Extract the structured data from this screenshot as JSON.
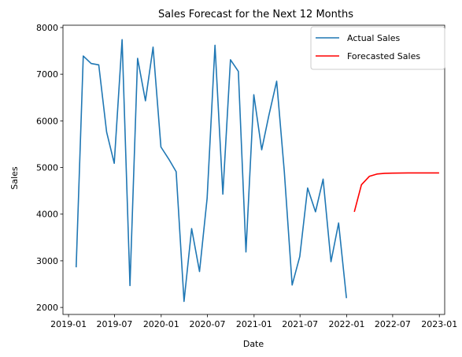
{
  "chart_data": {
    "type": "line",
    "title": "Sales Forecast for the Next 12 Months",
    "xlabel": "Date",
    "ylabel": "Sales",
    "x_type": "date",
    "xlim": [
      "2018-12-10",
      "2023-01-22"
    ],
    "ylim": [
      1850,
      8050
    ],
    "x_ticks": [
      "2019-01",
      "2019-07",
      "2020-01",
      "2020-07",
      "2021-01",
      "2021-07",
      "2022-01",
      "2022-07",
      "2023-01"
    ],
    "y_ticks": [
      2000,
      3000,
      4000,
      5000,
      6000,
      7000,
      8000
    ],
    "grid": false,
    "legend_position": "top-right",
    "series": [
      {
        "name": "Actual Sales",
        "color": "#1f77b4",
        "x": [
          "2019-01-31",
          "2019-02-28",
          "2019-03-31",
          "2019-04-30",
          "2019-05-31",
          "2019-06-30",
          "2019-07-31",
          "2019-08-31",
          "2019-09-30",
          "2019-10-31",
          "2019-11-30",
          "2019-12-31",
          "2020-01-31",
          "2020-02-29",
          "2020-03-31",
          "2020-04-30",
          "2020-05-31",
          "2020-06-30",
          "2020-07-31",
          "2020-08-31",
          "2020-09-30",
          "2020-10-31",
          "2020-11-30",
          "2020-12-31",
          "2021-01-31",
          "2021-02-28",
          "2021-03-31",
          "2021-04-30",
          "2021-05-31",
          "2021-06-30",
          "2021-07-31",
          "2021-08-31",
          "2021-09-30",
          "2021-10-31",
          "2021-11-30",
          "2021-12-31"
        ],
        "values": [
          2860,
          7390,
          7230,
          7200,
          5760,
          5090,
          7740,
          2470,
          7340,
          6430,
          7580,
          5440,
          5180,
          4910,
          2130,
          3690,
          2770,
          4340,
          7620,
          4430,
          7310,
          7060,
          3190,
          6560,
          5380,
          6110,
          6850,
          4920,
          2480,
          3090,
          4560,
          4050,
          4750,
          2980,
          3810,
          2200
        ]
      },
      {
        "name": "Forecasted Sales",
        "color": "#ff0000",
        "x": [
          "2022-01-31",
          "2022-02-28",
          "2022-03-31",
          "2022-04-30",
          "2022-05-31",
          "2022-06-30",
          "2022-07-31",
          "2022-08-31",
          "2022-09-30",
          "2022-10-31",
          "2022-11-30",
          "2022-12-31"
        ],
        "values": [
          4050,
          4630,
          4810,
          4860,
          4875,
          4880,
          4882,
          4883,
          4883,
          4883,
          4883,
          4883
        ]
      }
    ]
  }
}
